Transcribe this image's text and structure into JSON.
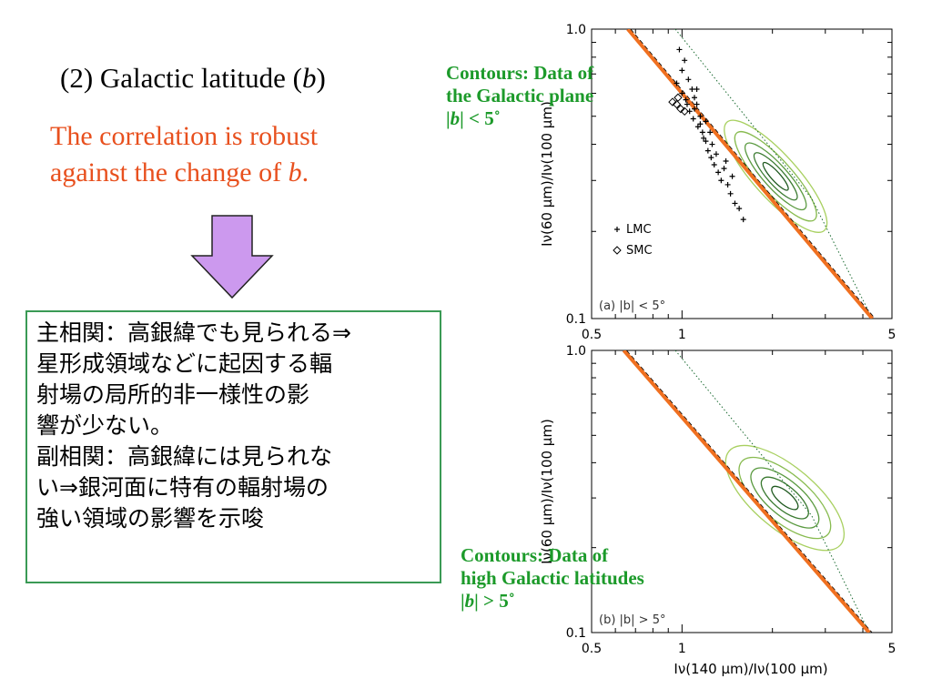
{
  "slide": {
    "heading_prefix": "(2) Galactic latitude (",
    "heading_var": "b",
    "heading_suffix": ")",
    "finding_line1": "The correlation is robust",
    "finding_line2_prefix": "against the change of ",
    "finding_line2_var": "b",
    "finding_line2_suffix": ".",
    "arrow_color": "#cc99ee",
    "box": {
      "line1": "主相関：高銀緯でも見られる⇒",
      "line2": "星形成領域などに起因する輻",
      "line3": "射場の局所的非一様性の影",
      "line4": "響が少ない。",
      "line5": "副相関：高銀緯には見られな",
      "line6": "い⇒銀河面に特有の輻射場の",
      "line7": "強い領域の影響を示唆"
    },
    "label_top": {
      "line1": "Contours: Data of",
      "line2": "the Galactic plane",
      "line3_pre": "|",
      "line3_var": "b",
      "line3_post": "| < 5˚"
    },
    "label_bottom": {
      "line1": "Contours: Data of",
      "line2": "high Galactic latitudes",
      "line3_pre": "|",
      "line3_var": "b",
      "line3_post": "| > 5˚"
    }
  },
  "chart_data": [
    {
      "type": "scatter",
      "panel_label": "(a) |b| < 5°",
      "xscale": "log",
      "yscale": "log",
      "xlim": [
        0.5,
        5
      ],
      "ylim": [
        0.1,
        1.0
      ],
      "xticks": [
        "0.5",
        "1",
        "5"
      ],
      "yticks": [
        "1.0",
        "0.1"
      ],
      "xlabel": "",
      "ylabel": "Iν(60 μm)/Iν(100 μm)",
      "legend": [
        {
          "marker": "+",
          "name": "LMC"
        },
        {
          "marker": "◇",
          "name": "SMC"
        }
      ],
      "series": [
        {
          "name": "LMC",
          "marker": "+",
          "points": [
            [
              0.98,
              0.85
            ],
            [
              1.02,
              0.78
            ],
            [
              1.0,
              0.72
            ],
            [
              1.05,
              0.67
            ],
            [
              1.08,
              0.62
            ],
            [
              1.1,
              0.58
            ],
            [
              1.12,
              0.55
            ],
            [
              1.15,
              0.5
            ],
            [
              1.0,
              0.6
            ],
            [
              1.03,
              0.57
            ],
            [
              1.06,
              0.52
            ],
            [
              1.09,
              0.49
            ],
            [
              1.13,
              0.46
            ],
            [
              1.17,
              0.44
            ],
            [
              1.2,
              0.41
            ],
            [
              1.22,
              0.38
            ],
            [
              1.25,
              0.36
            ],
            [
              1.28,
              0.34
            ],
            [
              1.32,
              0.32
            ],
            [
              1.35,
              0.3
            ],
            [
              1.1,
              0.53
            ],
            [
              1.15,
              0.47
            ],
            [
              1.18,
              0.42
            ],
            [
              1.26,
              0.4
            ],
            [
              1.3,
              0.37
            ],
            [
              1.38,
              0.33
            ],
            [
              1.42,
              0.29
            ],
            [
              1.45,
              0.27
            ],
            [
              1.5,
              0.25
            ],
            [
              1.55,
              0.24
            ],
            [
              1.12,
              0.62
            ],
            [
              1.2,
              0.48
            ],
            [
              1.24,
              0.44
            ],
            [
              0.96,
              0.65
            ],
            [
              1.04,
              0.55
            ],
            [
              1.4,
              0.35
            ],
            [
              1.6,
              0.22
            ],
            [
              1.47,
              0.31
            ]
          ]
        },
        {
          "name": "SMC",
          "marker": "diamond",
          "points": [
            [
              0.93,
              0.56
            ],
            [
              0.96,
              0.55
            ],
            [
              0.99,
              0.53
            ],
            [
              1.02,
              0.52
            ],
            [
              0.97,
              0.58
            ]
          ]
        }
      ],
      "contours": "Data of the Galactic plane",
      "fit_line": {
        "color": "#f07020",
        "points": [
          [
            0.66,
            1.0
          ],
          [
            4.3,
            0.1
          ]
        ]
      },
      "dotted_line": {
        "points": [
          [
            0.95,
            1.0
          ],
          [
            2.7,
            0.26
          ],
          [
            4.3,
            0.1
          ]
        ]
      }
    },
    {
      "type": "scatter",
      "panel_label": "(b) |b| > 5°",
      "xscale": "log",
      "yscale": "log",
      "xlim": [
        0.5,
        5
      ],
      "ylim": [
        0.1,
        1.0
      ],
      "xticks": [
        "0.5",
        "1",
        "5"
      ],
      "yticks": [
        "1.0",
        "0.1"
      ],
      "xlabel": "Iν(140 μm)/Iν(100 μm)",
      "ylabel": "Iν(60 μm)/Iν(100 μm)",
      "contours": "Data of high Galactic latitudes",
      "fit_line": {
        "color": "#f07020",
        "points": [
          [
            0.64,
            1.0
          ],
          [
            4.2,
            0.1
          ]
        ]
      },
      "dotted_line": {
        "points": [
          [
            0.95,
            1.0
          ],
          [
            2.7,
            0.26
          ],
          [
            4.2,
            0.1
          ]
        ]
      }
    }
  ]
}
